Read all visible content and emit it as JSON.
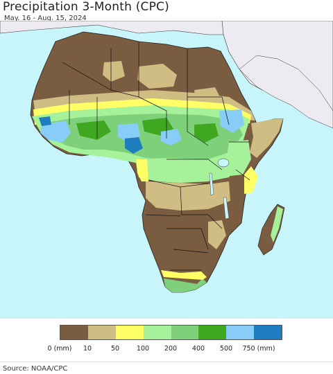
{
  "title": "Precipitation 3-Month (CPC)",
  "subtitle": "May. 16 - Aug. 15, 2024",
  "source": "Source: NOAA/CPC",
  "legend": {
    "colors": [
      "#7a5c40",
      "#cfbd84",
      "#ffff66",
      "#a6f29a",
      "#7ed07a",
      "#3fa820",
      "#88ccf8",
      "#1f7dbf"
    ],
    "labels": [
      "0 (mm)",
      "10",
      "50",
      "100",
      "200",
      "400",
      "500",
      "750 (mm)"
    ]
  },
  "map": {
    "ocean_color": "#c8f5fa",
    "other_land_color": "#eeeaf1",
    "border_color": "#111111"
  }
}
